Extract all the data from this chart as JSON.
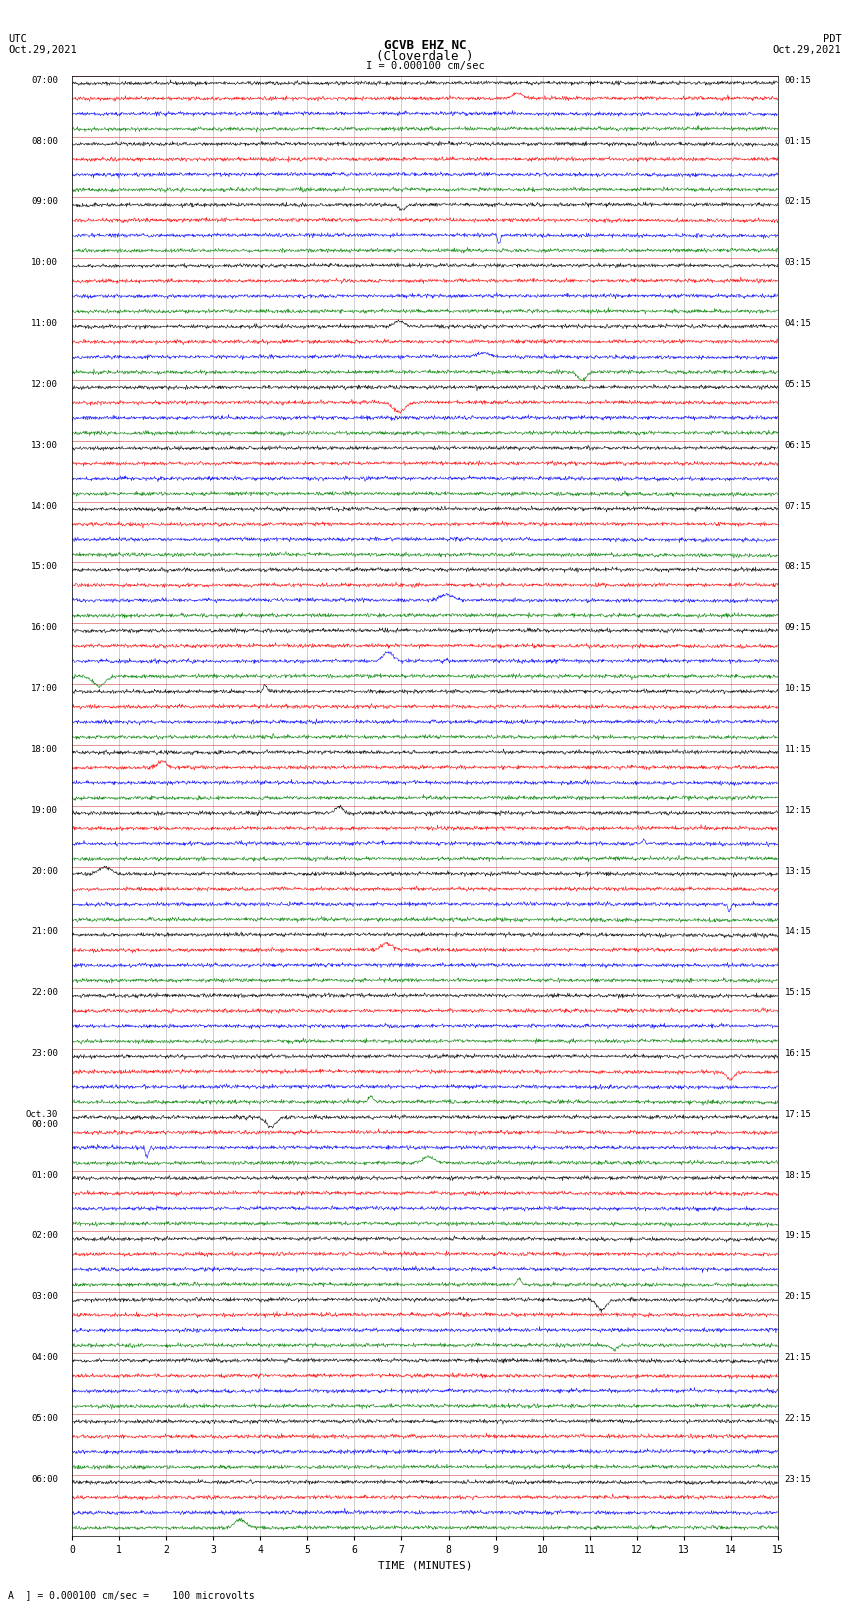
{
  "title_line1": "GCVB EHZ NC",
  "title_line2": "(Cloverdale )",
  "scale_text": "I = 0.000100 cm/sec",
  "left_header": "UTC\nOct.29,2021",
  "right_header": "PDT\nOct.29,2021",
  "bottom_label": "TIME (MINUTES)",
  "footer_text": "A  ] = 0.000100 cm/sec =    100 microvolts",
  "n_rows": 24,
  "traces_per_row": 4,
  "trace_colors": [
    "black",
    "red",
    "blue",
    "green"
  ],
  "bg_color": "#ffffff",
  "fig_width": 8.5,
  "fig_height": 16.13,
  "left_time_labels": [
    "07:00",
    "08:00",
    "09:00",
    "10:00",
    "11:00",
    "12:00",
    "13:00",
    "14:00",
    "15:00",
    "16:00",
    "17:00",
    "18:00",
    "19:00",
    "20:00",
    "21:00",
    "22:00",
    "23:00",
    "Oct.30\n00:00",
    "01:00",
    "02:00",
    "03:00",
    "04:00",
    "05:00",
    "06:00"
  ],
  "right_time_labels": [
    "00:15",
    "01:15",
    "02:15",
    "03:15",
    "04:15",
    "05:15",
    "06:15",
    "07:15",
    "08:15",
    "09:15",
    "10:15",
    "11:15",
    "12:15",
    "13:15",
    "14:15",
    "15:15",
    "16:15",
    "17:15",
    "18:15",
    "19:15",
    "20:15",
    "21:15",
    "22:15",
    "23:15"
  ]
}
